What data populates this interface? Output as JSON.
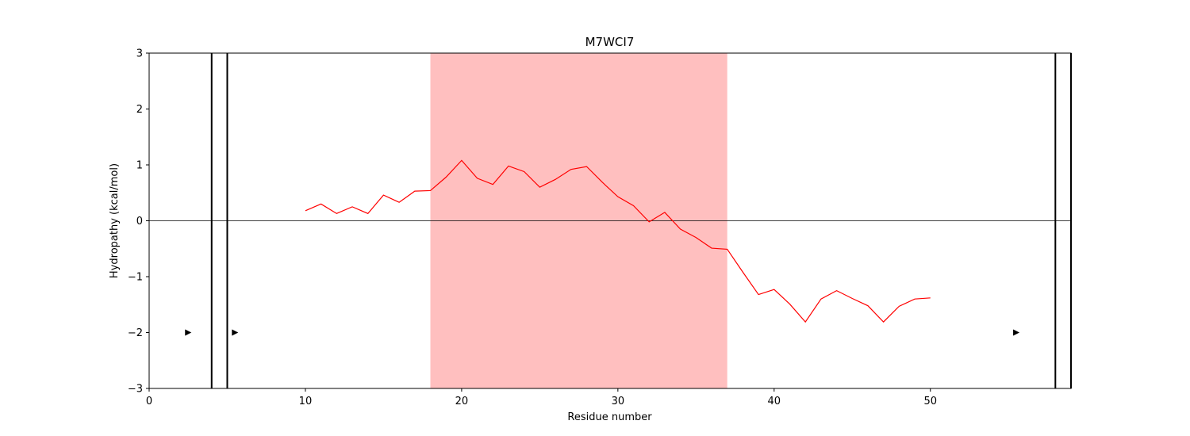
{
  "chart_data": {
    "type": "line",
    "title": "M7WCI7",
    "xlabel": "Residue number",
    "ylabel": "Hydropathy (kcal/mol)",
    "xlim": [
      0,
      59
    ],
    "ylim": [
      -3,
      3
    ],
    "xticks": [
      0,
      10,
      20,
      30,
      40,
      50
    ],
    "yticks": [
      -3,
      -2,
      -1,
      0,
      1,
      2,
      3
    ],
    "ytick_labels": [
      "−3",
      "−2",
      "−1",
      "0",
      "1",
      "2",
      "3"
    ],
    "grid": false,
    "zero_line": true,
    "highlight_regions": [
      {
        "start": 18,
        "end": 37,
        "color": "#ffbfbf"
      }
    ],
    "vertical_lines": [
      4,
      5,
      58,
      59
    ],
    "markers": [
      {
        "x": 2.5,
        "y": -2
      },
      {
        "x": 5.5,
        "y": -2
      },
      {
        "x": 55.5,
        "y": -2
      }
    ],
    "series": [
      {
        "color": "#ff0000",
        "x": [
          10,
          11,
          12,
          13,
          14,
          15,
          16,
          17,
          18,
          19,
          20,
          21,
          22,
          23,
          24,
          25,
          26,
          27,
          28,
          29,
          30,
          31,
          32,
          33,
          34,
          35,
          36,
          37,
          38,
          39,
          40,
          41,
          42,
          43,
          44,
          45,
          46,
          47,
          48,
          49,
          50
        ],
        "y": [
          0.18,
          0.3,
          0.13,
          0.25,
          0.13,
          0.46,
          0.33,
          0.53,
          0.54,
          0.78,
          1.08,
          0.76,
          0.65,
          0.98,
          0.88,
          0.6,
          0.74,
          0.92,
          0.97,
          0.69,
          0.43,
          0.27,
          -0.02,
          0.15,
          -0.15,
          -0.3,
          -0.49,
          -0.51,
          -0.92,
          -1.32,
          -1.23,
          -1.49,
          -1.81,
          -1.4,
          -1.25,
          -1.39,
          -1.52,
          -1.81,
          -1.53,
          -1.4,
          -1.38
        ]
      }
    ]
  }
}
